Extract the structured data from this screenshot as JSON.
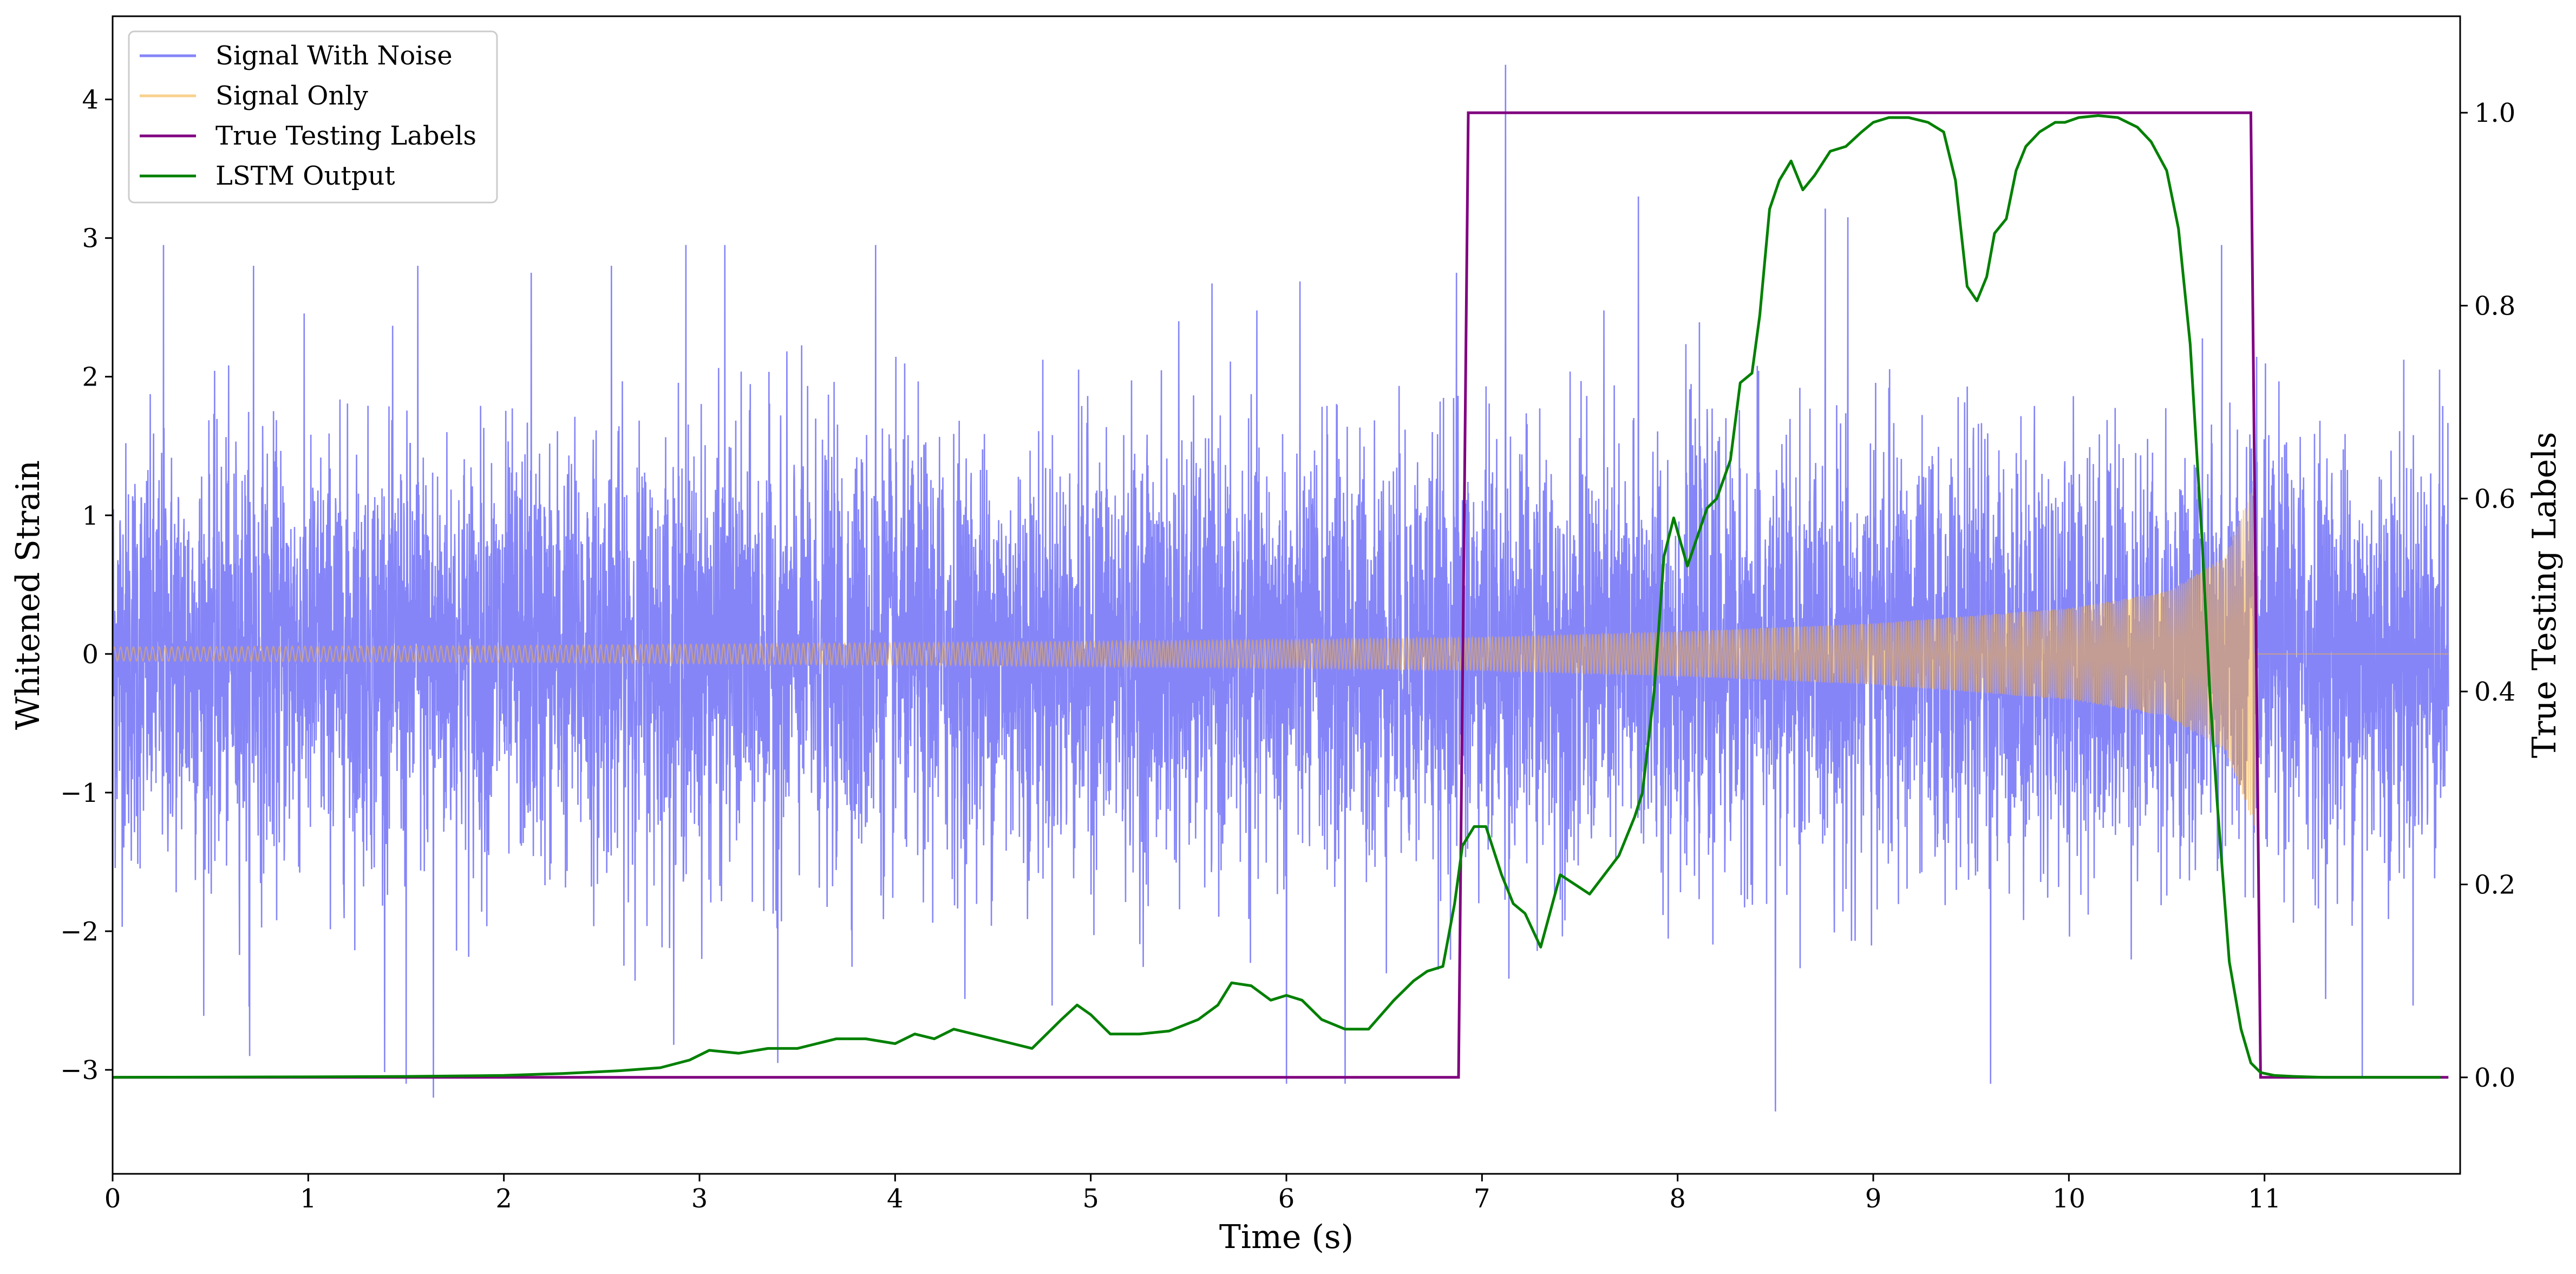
{
  "chart_data": {
    "type": "line",
    "title": "",
    "xlabel": "Time (s)",
    "ylabel": "Whitened Strain",
    "ylabel_right": "True Testing Labels",
    "xlim": [
      0,
      12
    ],
    "ylim": [
      -3.75,
      4.6
    ],
    "ylim_right": [
      -0.1,
      1.1
    ],
    "x_ticks": [
      0,
      1,
      2,
      3,
      4,
      5,
      6,
      7,
      8,
      9,
      10,
      11
    ],
    "x_tick_labels": [
      "0",
      "1",
      "2",
      "3",
      "4",
      "5",
      "6",
      "7",
      "8",
      "9",
      "10",
      "11"
    ],
    "y_ticks": [
      -3,
      -2,
      -1,
      0,
      1,
      2,
      3,
      4
    ],
    "y_tick_labels": [
      "−3",
      "−2",
      "−1",
      "0",
      "1",
      "2",
      "3",
      "4"
    ],
    "y_right_ticks": [
      0.0,
      0.2,
      0.4,
      0.6,
      0.8,
      1.0
    ],
    "y_right_tick_labels": [
      "0.0",
      "0.2",
      "0.4",
      "0.6",
      "0.8",
      "1.0"
    ],
    "grid": false,
    "legend_position": "top-left",
    "legend": [
      "Signal With Noise",
      "Signal Only",
      "True Testing Labels",
      "LSTM Output"
    ],
    "series": [
      {
        "name": "Signal With Noise",
        "axis": "left",
        "color": "#7b7bf7",
        "style": "dense gaussian noise trace, sigma ~0.75, occasional spikes up to about 4.3 and down to about -3.4",
        "noise_sigma": 0.75,
        "spikes": [
          {
            "x": 0.26,
            "y": 2.95
          },
          {
            "x": 0.72,
            "y": 2.8
          },
          {
            "x": 1.56,
            "y": 2.8
          },
          {
            "x": 1.64,
            "y": -3.2
          },
          {
            "x": 1.5,
            "y": -3.1
          },
          {
            "x": 2.14,
            "y": 2.75
          },
          {
            "x": 2.55,
            "y": 2.8
          },
          {
            "x": 2.93,
            "y": 2.95
          },
          {
            "x": 3.13,
            "y": 2.95
          },
          {
            "x": 3.4,
            "y": -2.95
          },
          {
            "x": 3.9,
            "y": 2.95
          },
          {
            "x": 0.7,
            "y": -2.9
          },
          {
            "x": 5.45,
            "y": 2.4
          },
          {
            "x": 6.0,
            "y": -3.1
          },
          {
            "x": 6.3,
            "y": -3.1
          },
          {
            "x": 6.87,
            "y": 2.75
          },
          {
            "x": 7.12,
            "y": 4.25
          },
          {
            "x": 7.8,
            "y": 3.3
          },
          {
            "x": 8.5,
            "y": -3.4
          },
          {
            "x": 8.87,
            "y": 3.15
          },
          {
            "x": 9.6,
            "y": -3.1
          },
          {
            "x": 10.78,
            "y": 2.95
          },
          {
            "x": 11.5,
            "y": -3.05
          }
        ]
      },
      {
        "name": "Signal Only",
        "axis": "left",
        "color": "#f5b042",
        "style": "chirp: oscillation with amplitude growing from about 0.05 to about 1.25 between t=0 and t=10.95, zero afterward",
        "amplitude_envelope": {
          "x": [
            0,
            2,
            4,
            6,
            7,
            8,
            9,
            10,
            10.5,
            10.8,
            10.95
          ],
          "y": [
            0.05,
            0.06,
            0.08,
            0.1,
            0.12,
            0.16,
            0.22,
            0.33,
            0.45,
            0.7,
            1.25
          ]
        },
        "end_time": 10.95
      },
      {
        "name": "True Testing Labels",
        "axis": "right",
        "color": "#800080",
        "x": [
          0,
          6.88,
          6.93,
          10.93,
          10.98,
          11.94
        ],
        "y": [
          0,
          0,
          1,
          1,
          0,
          0
        ]
      },
      {
        "name": "LSTM Output",
        "axis": "right",
        "color": "#008000",
        "x": [
          0,
          1.0,
          1.5,
          2.0,
          2.3,
          2.6,
          2.8,
          2.95,
          3.05,
          3.2,
          3.35,
          3.5,
          3.6,
          3.7,
          3.85,
          4.0,
          4.1,
          4.2,
          4.3,
          4.4,
          4.5,
          4.6,
          4.7,
          4.85,
          4.93,
          5.0,
          5.1,
          5.25,
          5.4,
          5.55,
          5.65,
          5.72,
          5.82,
          5.92,
          6.0,
          6.08,
          6.18,
          6.3,
          6.42,
          6.55,
          6.65,
          6.72,
          6.8,
          6.86,
          6.9,
          6.96,
          7.02,
          7.1,
          7.16,
          7.22,
          7.3,
          7.4,
          7.55,
          7.7,
          7.78,
          7.82,
          7.88,
          7.93,
          7.98,
          8.05,
          8.15,
          8.2,
          8.27,
          8.32,
          8.38,
          8.42,
          8.47,
          8.52,
          8.58,
          8.64,
          8.7,
          8.78,
          8.86,
          8.94,
          9.0,
          9.08,
          9.18,
          9.28,
          9.36,
          9.42,
          9.48,
          9.53,
          9.58,
          9.62,
          9.68,
          9.73,
          9.78,
          9.85,
          9.93,
          9.98,
          10.05,
          10.15,
          10.25,
          10.35,
          10.42,
          10.5,
          10.56,
          10.62,
          10.68,
          10.72,
          10.76,
          10.82,
          10.88,
          10.93,
          10.98,
          11.05,
          11.15,
          11.3,
          11.9
        ],
        "y": [
          0,
          0.0005,
          0.001,
          0.002,
          0.004,
          0.007,
          0.01,
          0.018,
          0.028,
          0.025,
          0.03,
          0.03,
          0.035,
          0.04,
          0.04,
          0.035,
          0.045,
          0.04,
          0.05,
          0.045,
          0.04,
          0.035,
          0.03,
          0.06,
          0.075,
          0.065,
          0.045,
          0.045,
          0.048,
          0.06,
          0.075,
          0.098,
          0.095,
          0.08,
          0.085,
          0.08,
          0.06,
          0.05,
          0.05,
          0.08,
          0.1,
          0.11,
          0.115,
          0.18,
          0.24,
          0.26,
          0.26,
          0.21,
          0.18,
          0.17,
          0.135,
          0.21,
          0.19,
          0.23,
          0.27,
          0.295,
          0.4,
          0.54,
          0.58,
          0.53,
          0.59,
          0.6,
          0.64,
          0.72,
          0.73,
          0.79,
          0.9,
          0.93,
          0.95,
          0.92,
          0.935,
          0.96,
          0.965,
          0.98,
          0.99,
          0.995,
          0.995,
          0.99,
          0.98,
          0.93,
          0.82,
          0.805,
          0.83,
          0.875,
          0.89,
          0.94,
          0.965,
          0.98,
          0.99,
          0.99,
          0.995,
          0.997,
          0.995,
          0.985,
          0.97,
          0.94,
          0.88,
          0.76,
          0.56,
          0.4,
          0.28,
          0.12,
          0.05,
          0.015,
          0.005,
          0.002,
          0.001,
          0,
          0
        ]
      }
    ]
  }
}
